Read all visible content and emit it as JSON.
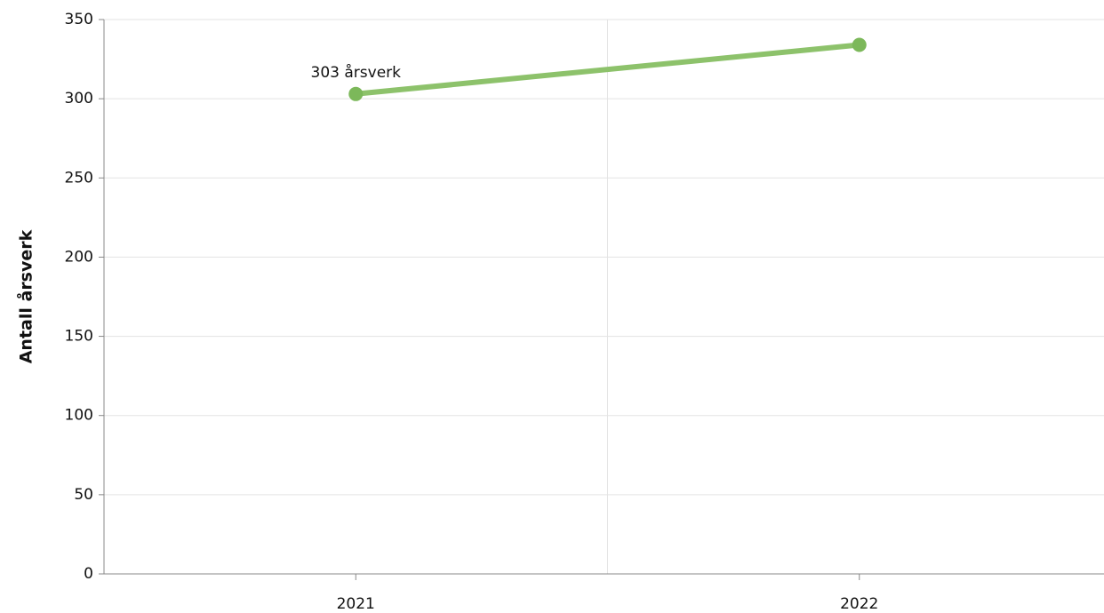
{
  "chart_data": {
    "type": "line",
    "y_label": "Antall årsverk",
    "categories": [
      "2021",
      "2022"
    ],
    "values": [
      303,
      334
    ],
    "value_labels": [
      "303 årsverk",
      null
    ],
    "color": "#8dc26b",
    "ylim": [
      0,
      350
    ],
    "yticks": [
      0,
      50,
      100,
      150,
      200,
      250,
      300,
      350
    ],
    "grid": true
  }
}
